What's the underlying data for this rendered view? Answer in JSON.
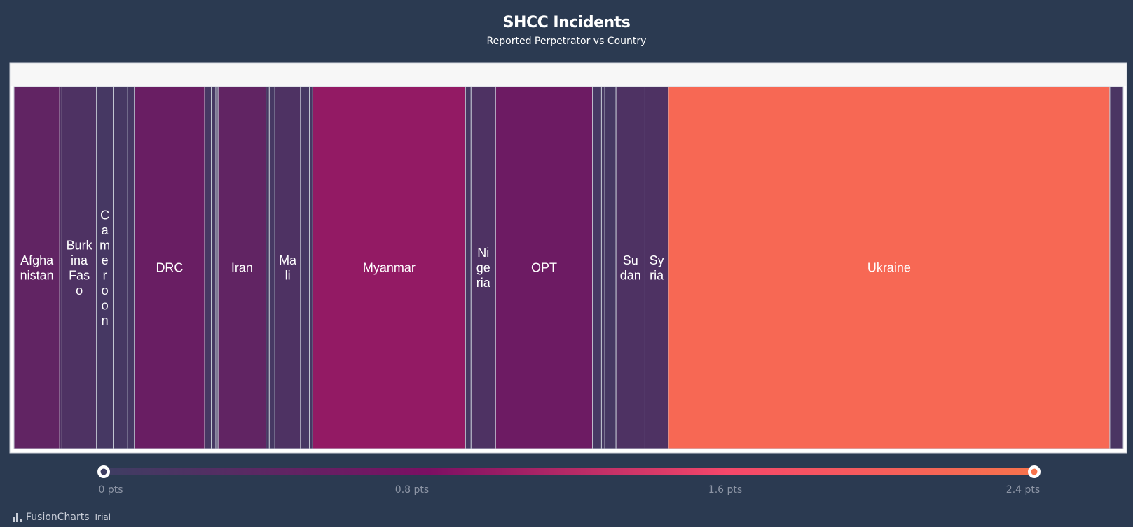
{
  "chart_data": {
    "type": "treemap",
    "title": "SHCC Incidents",
    "subtitle": "Reported Perpetrator vs Country",
    "value_unit": "pts",
    "color_range": {
      "min": 0,
      "max": 2.4,
      "colors": [
        "#3e3e63",
        "#7c0f63",
        "#f5476a",
        "#f7734c"
      ]
    },
    "legend_ticks": [
      "0 pts",
      "0.8 pts",
      "1.6 pts",
      "2.4 pts"
    ],
    "items": [
      {
        "label": "Afghanistan",
        "display": [
          "Afgha",
          "nistan"
        ],
        "value": 0.41,
        "color_value": 0.45
      },
      {
        "label": "",
        "value": 0.02,
        "color_value": 0.2
      },
      {
        "label": "Burkina Faso",
        "display": [
          "Burk",
          "ina",
          "Fas",
          "o"
        ],
        "value": 0.31,
        "color_value": 0.2
      },
      {
        "label": "Cameroon",
        "display": [
          "C",
          "a",
          "m",
          "e",
          "r",
          "o",
          "o",
          "n"
        ],
        "value": 0.15,
        "color_value": 0.1
      },
      {
        "label": "",
        "value": 0.13,
        "color_value": 0.1
      },
      {
        "label": "",
        "value": 0.06,
        "color_value": 0.1
      },
      {
        "label": "DRC",
        "display": [
          "DRC"
        ],
        "value": 0.63,
        "color_value": 0.55
      },
      {
        "label": "",
        "value": 0.06,
        "color_value": 0.1
      },
      {
        "label": "",
        "value": 0.04,
        "color_value": 0.1
      },
      {
        "label": "",
        "value": 0.02,
        "color_value": 0.1
      },
      {
        "label": "Iran",
        "display": [
          "Iran"
        ],
        "value": 0.43,
        "color_value": 0.45
      },
      {
        "label": "",
        "value": 0.03,
        "color_value": 0.1
      },
      {
        "label": "",
        "value": 0.05,
        "color_value": 0.1
      },
      {
        "label": "Mali",
        "display": [
          "Ma",
          "li"
        ],
        "value": 0.23,
        "color_value": 0.2
      },
      {
        "label": "",
        "value": 0.08,
        "color_value": 0.1
      },
      {
        "label": "",
        "value": 0.03,
        "color_value": 0.1
      },
      {
        "label": "Myanmar",
        "display": [
          "Myanmar"
        ],
        "value": 1.37,
        "color_value": 0.95
      },
      {
        "label": "",
        "value": 0.05,
        "color_value": 0.1
      },
      {
        "label": "Nigeria",
        "display": [
          "Ni",
          "ge",
          "ria"
        ],
        "value": 0.22,
        "color_value": 0.2
      },
      {
        "label": "OPT",
        "display": [
          "OPT"
        ],
        "value": 0.87,
        "color_value": 0.6
      },
      {
        "label": "",
        "value": 0.08,
        "color_value": 0.1
      },
      {
        "label": "",
        "value": 0.03,
        "color_value": 0.1
      },
      {
        "label": "",
        "value": 0.1,
        "color_value": 0.1
      },
      {
        "label": "Sudan",
        "display": [
          "Su",
          "dan"
        ],
        "value": 0.26,
        "color_value": 0.2
      },
      {
        "label": "Syria",
        "display": [
          "Sy",
          "ria"
        ],
        "value": 0.21,
        "color_value": 0.2
      },
      {
        "label": "Ukraine",
        "display": [
          "Ukraine"
        ],
        "value": 3.96,
        "color_value": 2.2
      },
      {
        "label": "",
        "value": 0.12,
        "color_value": 0.15
      }
    ]
  },
  "branding": {
    "logo_text": "FusionCharts",
    "trial_text": "Trial"
  }
}
